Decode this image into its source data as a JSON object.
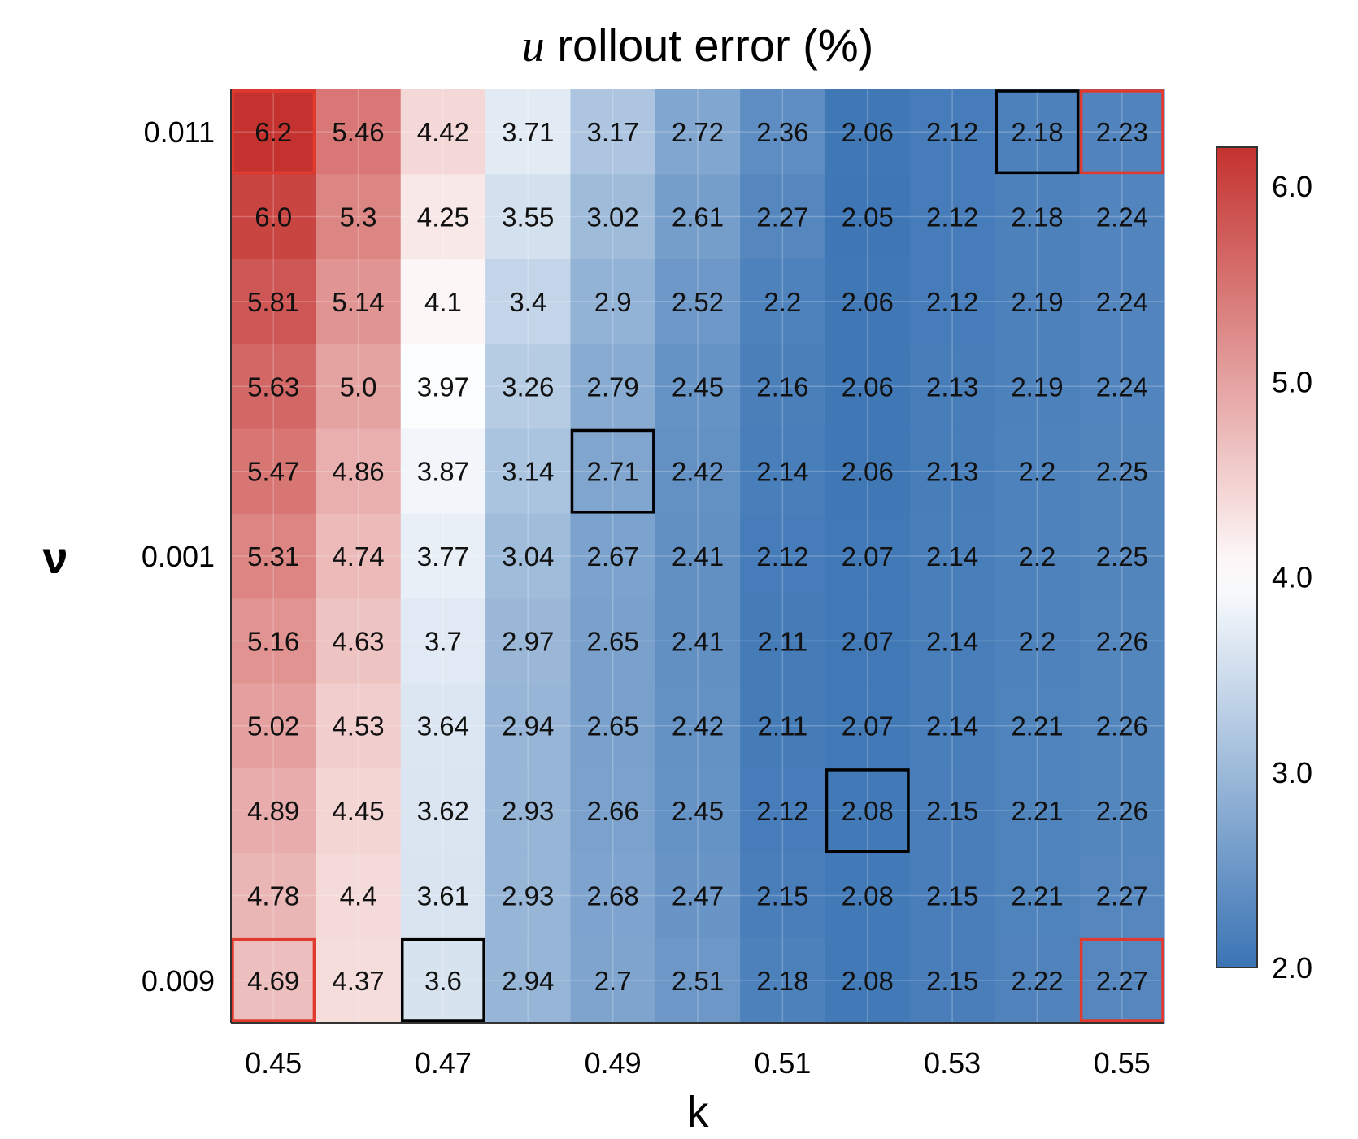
{
  "chart_data": {
    "type": "heatmap",
    "title_var": "u",
    "title_rest": " rollout error (%)",
    "xlabel": "k",
    "ylabel": "ν",
    "x_tick_labels": [
      "0.45",
      "0.47",
      "0.49",
      "0.51",
      "0.53",
      "0.55"
    ],
    "x_tick_columns": [
      0,
      2,
      4,
      6,
      8,
      10
    ],
    "y_tick_labels": [
      "0.011",
      "0.001",
      "0.009"
    ],
    "y_tick_rows": [
      0,
      5,
      10
    ],
    "colorbar": {
      "min": 2.0,
      "max": 6.2,
      "tick_values": [
        2.0,
        3.0,
        4.0,
        5.0,
        6.0
      ],
      "tick_labels": [
        "2.0",
        "3.0",
        "4.0",
        "5.0",
        "6.0"
      ],
      "colors": {
        "low": "#3a74b4",
        "mid": "#ffffff",
        "high": "#c4322f"
      },
      "midpoint": 4.0
    },
    "values": [
      [
        6.2,
        5.46,
        4.42,
        3.71,
        3.17,
        2.72,
        2.36,
        2.06,
        2.12,
        2.18,
        2.23
      ],
      [
        6.0,
        5.3,
        4.25,
        3.55,
        3.02,
        2.61,
        2.27,
        2.05,
        2.12,
        2.18,
        2.24
      ],
      [
        5.81,
        5.14,
        4.1,
        3.4,
        2.9,
        2.52,
        2.2,
        2.06,
        2.12,
        2.19,
        2.24
      ],
      [
        5.63,
        5.0,
        3.97,
        3.26,
        2.79,
        2.45,
        2.16,
        2.06,
        2.13,
        2.19,
        2.24
      ],
      [
        5.47,
        4.86,
        3.87,
        3.14,
        2.71,
        2.42,
        2.14,
        2.06,
        2.13,
        2.2,
        2.25
      ],
      [
        5.31,
        4.74,
        3.77,
        3.04,
        2.67,
        2.41,
        2.12,
        2.07,
        2.14,
        2.2,
        2.25
      ],
      [
        5.16,
        4.63,
        3.7,
        2.97,
        2.65,
        2.41,
        2.11,
        2.07,
        2.14,
        2.2,
        2.26
      ],
      [
        5.02,
        4.53,
        3.64,
        2.94,
        2.65,
        2.42,
        2.11,
        2.07,
        2.14,
        2.21,
        2.26
      ],
      [
        4.89,
        4.45,
        3.62,
        2.93,
        2.66,
        2.45,
        2.12,
        2.08,
        2.15,
        2.21,
        2.26
      ],
      [
        4.78,
        4.4,
        3.61,
        2.93,
        2.68,
        2.47,
        2.15,
        2.08,
        2.15,
        2.21,
        2.27
      ],
      [
        4.69,
        4.37,
        3.6,
        2.94,
        2.7,
        2.51,
        2.18,
        2.08,
        2.15,
        2.22,
        2.27
      ]
    ],
    "value_labels": [
      [
        "6.2",
        "5.46",
        "4.42",
        "3.71",
        "3.17",
        "2.72",
        "2.36",
        "2.06",
        "2.12",
        "2.18",
        "2.23"
      ],
      [
        "6.0",
        "5.3",
        "4.25",
        "3.55",
        "3.02",
        "2.61",
        "2.27",
        "2.05",
        "2.12",
        "2.18",
        "2.24"
      ],
      [
        "5.81",
        "5.14",
        "4.1",
        "3.4",
        "2.9",
        "2.52",
        "2.2",
        "2.06",
        "2.12",
        "2.19",
        "2.24"
      ],
      [
        "5.63",
        "5.0",
        "3.97",
        "3.26",
        "2.79",
        "2.45",
        "2.16",
        "2.06",
        "2.13",
        "2.19",
        "2.24"
      ],
      [
        "5.47",
        "4.86",
        "3.87",
        "3.14",
        "2.71",
        "2.42",
        "2.14",
        "2.06",
        "2.13",
        "2.2",
        "2.25"
      ],
      [
        "5.31",
        "4.74",
        "3.77",
        "3.04",
        "2.67",
        "2.41",
        "2.12",
        "2.07",
        "2.14",
        "2.2",
        "2.25"
      ],
      [
        "5.16",
        "4.63",
        "3.7",
        "2.97",
        "2.65",
        "2.41",
        "2.11",
        "2.07",
        "2.14",
        "2.2",
        "2.26"
      ],
      [
        "5.02",
        "4.53",
        "3.64",
        "2.94",
        "2.65",
        "2.42",
        "2.11",
        "2.07",
        "2.14",
        "2.21",
        "2.26"
      ],
      [
        "4.89",
        "4.45",
        "3.62",
        "2.93",
        "2.66",
        "2.45",
        "2.12",
        "2.08",
        "2.15",
        "2.21",
        "2.26"
      ],
      [
        "4.78",
        "4.4",
        "3.61",
        "2.93",
        "2.68",
        "2.47",
        "2.15",
        "2.08",
        "2.15",
        "2.21",
        "2.27"
      ],
      [
        "4.69",
        "4.37",
        "3.6",
        "2.94",
        "2.7",
        "2.51",
        "2.18",
        "2.08",
        "2.15",
        "2.22",
        "2.27"
      ]
    ],
    "highlights": [
      {
        "row": 0,
        "col": 0,
        "color": "#e03a2e"
      },
      {
        "row": 0,
        "col": 9,
        "color": "#000000"
      },
      {
        "row": 0,
        "col": 10,
        "color": "#e03a2e"
      },
      {
        "row": 4,
        "col": 4,
        "color": "#000000"
      },
      {
        "row": 8,
        "col": 7,
        "color": "#000000"
      },
      {
        "row": 10,
        "col": 0,
        "color": "#e03a2e"
      },
      {
        "row": 10,
        "col": 2,
        "color": "#000000"
      },
      {
        "row": 10,
        "col": 10,
        "color": "#e03a2e"
      }
    ],
    "grid": true
  }
}
